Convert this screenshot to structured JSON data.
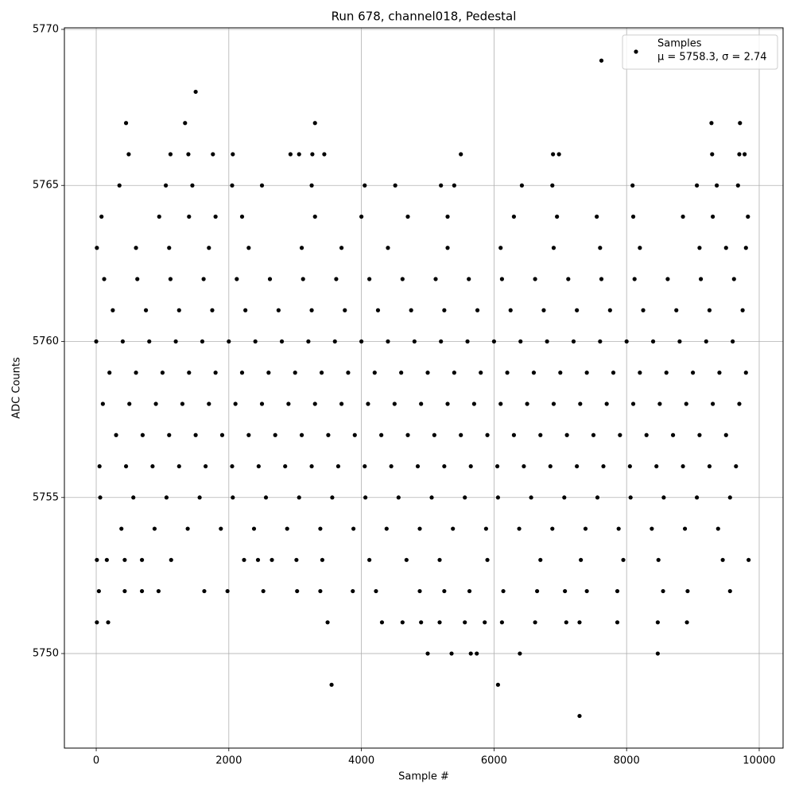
{
  "chart_data": {
    "type": "scatter",
    "title": "Run 678, channel018, Pedestal",
    "x_label": "Sample #",
    "y_label": "ADC Counts",
    "annotation": "μ = 5758.3, σ = 2.74",
    "legend": "upper right",
    "grid": true,
    "xlim": [
      -480,
      10360
    ],
    "ylim": [
      5746.97,
      5770.05
    ],
    "xticks": [
      0,
      2000,
      4000,
      6000,
      8000,
      10000
    ],
    "yticks": [
      5750,
      5755,
      5760,
      5765,
      5770
    ],
    "series": [
      {
        "name": "Samples",
        "color": "#000000",
        "x": [
          0,
          400,
          800,
          1200,
          1600,
          2000,
          2400,
          2800,
          3200,
          3600,
          4000,
          4400,
          4800,
          5200,
          5600,
          6000,
          6400,
          6800,
          7200,
          7600,
          8000,
          8400,
          8800,
          9200,
          9600,
          200,
          600,
          1000,
          1400,
          1800,
          2200,
          2600,
          3000,
          3400,
          3800,
          4200,
          4600,
          5000,
          5400,
          5800,
          6200,
          6600,
          7000,
          7400,
          7800,
          8200,
          8600,
          9000,
          9400,
          9800,
          100,
          500,
          900,
          1300,
          1700,
          2100,
          2500,
          2900,
          3300,
          3700,
          4100,
          4500,
          4900,
          5300,
          5700,
          6100,
          6500,
          6900,
          7300,
          7700,
          8100,
          8500,
          8900,
          9300,
          9700,
          300,
          700,
          1100,
          1500,
          1900,
          2300,
          2700,
          3100,
          3500,
          3900,
          4300,
          4700,
          5100,
          5500,
          5900,
          6300,
          6700,
          7100,
          7500,
          7900,
          8300,
          8700,
          9100,
          9500,
          50,
          450,
          850,
          1250,
          1650,
          2050,
          2450,
          2850,
          3250,
          3650,
          4050,
          4450,
          4850,
          5250,
          5650,
          6050,
          6450,
          6850,
          7250,
          7650,
          8050,
          8450,
          8850,
          9250,
          9650,
          250,
          750,
          1250,
          1750,
          2250,
          2750,
          3250,
          3750,
          4250,
          4750,
          5250,
          5750,
          6250,
          6750,
          7250,
          7750,
          8250,
          8750,
          9250,
          9750,
          120,
          620,
          1120,
          1620,
          2120,
          2620,
          3120,
          3620,
          4120,
          4620,
          5120,
          5620,
          6120,
          6620,
          7120,
          7620,
          8120,
          8620,
          9120,
          9620,
          60,
          560,
          1060,
          1560,
          2060,
          2560,
          3060,
          3560,
          4060,
          4560,
          5060,
          5560,
          6060,
          6560,
          7060,
          7560,
          8060,
          8560,
          9060,
          9560,
          380,
          880,
          1380,
          1880,
          2380,
          2880,
          3380,
          3880,
          4380,
          4880,
          5380,
          5880,
          6380,
          6880,
          7380,
          7880,
          8380,
          8880,
          9380,
          10,
          600,
          1100,
          1700,
          2300,
          3100,
          3700,
          4400,
          5300,
          6100,
          6900,
          7600,
          8200,
          9100,
          9500,
          9800,
          80,
          950,
          1400,
          1800,
          2200,
          3300,
          4000,
          4700,
          5300,
          6300,
          6950,
          7550,
          8100,
          8850,
          9300,
          9830,
          350,
          1050,
          1450,
          2050,
          2500,
          3250,
          4050,
          4510,
          5200,
          5400,
          6420,
          6880,
          8090,
          9060,
          9360,
          9680,
          490,
          1120,
          1390,
          1760,
          2060,
          2930,
          3060,
          3260,
          3440,
          5500,
          6890,
          6980,
          9290,
          9700,
          9780,
          450,
          1340,
          3300,
          9280,
          9710,
          1500,
          7620,
          10,
          160,
          430,
          690,
          1130,
          2230,
          2440,
          2650,
          3020,
          3410,
          4120,
          4680,
          5180,
          5900,
          6700,
          7310,
          7950,
          8480,
          9450,
          9840,
          40,
          430,
          690,
          940,
          1630,
          1980,
          2520,
          3030,
          3380,
          3870,
          4220,
          4880,
          5250,
          5630,
          6140,
          6650,
          7070,
          7400,
          7860,
          8550,
          8920,
          9560,
          10,
          180,
          3490,
          4310,
          4620,
          4900,
          5180,
          5560,
          5860,
          6120,
          6620,
          7090,
          7290,
          7860,
          8470,
          8910,
          5000,
          5360,
          5650,
          5740,
          6390,
          8470,
          3550,
          6060,
          7290
        ],
        "values": [
          5760,
          5760,
          5760,
          5760,
          5760,
          5760,
          5760,
          5760,
          5760,
          5760,
          5760,
          5760,
          5760,
          5760,
          5760,
          5760,
          5760,
          5760,
          5760,
          5760,
          5760,
          5760,
          5760,
          5760,
          5760,
          5759,
          5759,
          5759,
          5759,
          5759,
          5759,
          5759,
          5759,
          5759,
          5759,
          5759,
          5759,
          5759,
          5759,
          5759,
          5759,
          5759,
          5759,
          5759,
          5759,
          5759,
          5759,
          5759,
          5759,
          5759,
          5758,
          5758,
          5758,
          5758,
          5758,
          5758,
          5758,
          5758,
          5758,
          5758,
          5758,
          5758,
          5758,
          5758,
          5758,
          5758,
          5758,
          5758,
          5758,
          5758,
          5758,
          5758,
          5758,
          5758,
          5758,
          5757,
          5757,
          5757,
          5757,
          5757,
          5757,
          5757,
          5757,
          5757,
          5757,
          5757,
          5757,
          5757,
          5757,
          5757,
          5757,
          5757,
          5757,
          5757,
          5757,
          5757,
          5757,
          5757,
          5757,
          5756,
          5756,
          5756,
          5756,
          5756,
          5756,
          5756,
          5756,
          5756,
          5756,
          5756,
          5756,
          5756,
          5756,
          5756,
          5756,
          5756,
          5756,
          5756,
          5756,
          5756,
          5756,
          5756,
          5756,
          5756,
          5761,
          5761,
          5761,
          5761,
          5761,
          5761,
          5761,
          5761,
          5761,
          5761,
          5761,
          5761,
          5761,
          5761,
          5761,
          5761,
          5761,
          5761,
          5761,
          5761,
          5762,
          5762,
          5762,
          5762,
          5762,
          5762,
          5762,
          5762,
          5762,
          5762,
          5762,
          5762,
          5762,
          5762,
          5762,
          5762,
          5762,
          5762,
          5762,
          5762,
          5755,
          5755,
          5755,
          5755,
          5755,
          5755,
          5755,
          5755,
          5755,
          5755,
          5755,
          5755,
          5755,
          5755,
          5755,
          5755,
          5755,
          5755,
          5755,
          5755,
          5754,
          5754,
          5754,
          5754,
          5754,
          5754,
          5754,
          5754,
          5754,
          5754,
          5754,
          5754,
          5754,
          5754,
          5754,
          5754,
          5754,
          5754,
          5754,
          5763,
          5763,
          5763,
          5763,
          5763,
          5763,
          5763,
          5763,
          5763,
          5763,
          5763,
          5763,
          5763,
          5763,
          5763,
          5763,
          5764,
          5764,
          5764,
          5764,
          5764,
          5764,
          5764,
          5764,
          5764,
          5764,
          5764,
          5764,
          5764,
          5764,
          5764,
          5764,
          5765,
          5765,
          5765,
          5765,
          5765,
          5765,
          5765,
          5765,
          5765,
          5765,
          5765,
          5765,
          5765,
          5765,
          5765,
          5765,
          5766,
          5766,
          5766,
          5766,
          5766,
          5766,
          5766,
          5766,
          5766,
          5766,
          5766,
          5766,
          5766,
          5766,
          5766,
          5767,
          5767,
          5767,
          5767,
          5767,
          5768,
          5769,
          5753,
          5753,
          5753,
          5753,
          5753,
          5753,
          5753,
          5753,
          5753,
          5753,
          5753,
          5753,
          5753,
          5753,
          5753,
          5753,
          5753,
          5753,
          5753,
          5753,
          5752,
          5752,
          5752,
          5752,
          5752,
          5752,
          5752,
          5752,
          5752,
          5752,
          5752,
          5752,
          5752,
          5752,
          5752,
          5752,
          5752,
          5752,
          5752,
          5752,
          5752,
          5752,
          5751,
          5751,
          5751,
          5751,
          5751,
          5751,
          5751,
          5751,
          5751,
          5751,
          5751,
          5751,
          5751,
          5751,
          5751,
          5751,
          5750,
          5750,
          5750,
          5750,
          5750,
          5750,
          5749,
          5749,
          5748
        ]
      }
    ]
  }
}
